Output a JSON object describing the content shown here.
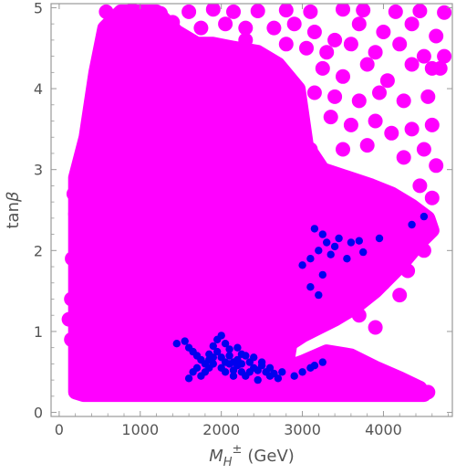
{
  "chart_data": {
    "type": "scatter",
    "xlabel": "M_H^± (GeV)",
    "xlabel_parts": {
      "main": "M",
      "sub": "H",
      "sup": "±",
      "unit": "(GeV)"
    },
    "ylabel": "tanβ",
    "ylabel_parts": {
      "main": "tan",
      "greek": "β"
    },
    "xlim": [
      -100,
      4850
    ],
    "ylim": [
      -0.05,
      5.05
    ],
    "x_ticks": [
      0,
      1000,
      2000,
      3000,
      4000
    ],
    "x_tick_labels": [
      "0",
      "1000",
      "2000",
      "3000",
      "4000"
    ],
    "y_ticks": [
      0,
      1,
      2,
      3,
      4,
      5
    ],
    "y_tick_labels": [
      "0",
      "1",
      "2",
      "3",
      "4",
      "5"
    ],
    "grid": false,
    "colors": {
      "magenta": "#ff00ff",
      "blue": "#0000ee",
      "axis": "#999999"
    },
    "region": {
      "name": "magenta-region",
      "color": "#ff00ff",
      "boundary": [
        [
          200,
          0.25
        ],
        [
          200,
          2.9
        ],
        [
          330,
          3.4
        ],
        [
          450,
          4.2
        ],
        [
          560,
          4.75
        ],
        [
          760,
          4.95
        ],
        [
          1200,
          4.95
        ],
        [
          1450,
          4.7
        ],
        [
          1700,
          4.55
        ],
        [
          1900,
          4.55
        ],
        [
          2150,
          4.5
        ],
        [
          2450,
          4.45
        ],
        [
          2700,
          4.3
        ],
        [
          2950,
          4.0
        ],
        [
          3050,
          3.3
        ],
        [
          3250,
          3.0
        ],
        [
          3550,
          2.9
        ],
        [
          3850,
          2.8
        ],
        [
          4100,
          2.7
        ],
        [
          4350,
          2.55
        ],
        [
          4550,
          2.4
        ],
        [
          4600,
          2.25
        ],
        [
          4450,
          2.1
        ],
        [
          4200,
          1.8
        ],
        [
          3900,
          1.5
        ],
        [
          3650,
          1.3
        ],
        [
          3400,
          1.15
        ],
        [
          3200,
          1.05
        ],
        [
          3000,
          0.95
        ],
        [
          2850,
          0.85
        ],
        [
          2800,
          0.55
        ],
        [
          3000,
          0.62
        ],
        [
          3300,
          0.75
        ],
        [
          3600,
          0.7
        ],
        [
          3900,
          0.55
        ],
        [
          4200,
          0.42
        ],
        [
          4450,
          0.3
        ],
        [
          4500,
          0.22
        ],
        [
          4000,
          0.22
        ],
        [
          3000,
          0.22
        ],
        [
          2000,
          0.22
        ],
        [
          1000,
          0.22
        ],
        [
          300,
          0.22
        ]
      ]
    },
    "series": [
      {
        "name": "",
        "color": "#ff00ff",
        "points": [
          [
            580,
            4.95
          ],
          [
            900,
            4.97
          ],
          [
            1250,
            4.93
          ],
          [
            1600,
            4.95
          ],
          [
            1900,
            4.98
          ],
          [
            2150,
            4.95
          ],
          [
            2450,
            4.96
          ],
          [
            2800,
            4.97
          ],
          [
            3100,
            4.95
          ],
          [
            3500,
            4.98
          ],
          [
            3750,
            4.97
          ],
          [
            4150,
            4.95
          ],
          [
            4450,
            4.96
          ],
          [
            4750,
            4.94
          ],
          [
            650,
            4.8
          ],
          [
            1000,
            4.78
          ],
          [
            1400,
            4.82
          ],
          [
            1750,
            4.75
          ],
          [
            2050,
            4.8
          ],
          [
            2300,
            4.75
          ],
          [
            2650,
            4.75
          ],
          [
            2900,
            4.8
          ],
          [
            3150,
            4.7
          ],
          [
            3400,
            4.6
          ],
          [
            3700,
            4.8
          ],
          [
            4000,
            4.7
          ],
          [
            4350,
            4.8
          ],
          [
            4650,
            4.65
          ],
          [
            2300,
            4.6
          ],
          [
            2800,
            4.55
          ],
          [
            3050,
            4.5
          ],
          [
            3300,
            4.45
          ],
          [
            3600,
            4.55
          ],
          [
            3900,
            4.45
          ],
          [
            4200,
            4.55
          ],
          [
            4500,
            4.4
          ],
          [
            4750,
            4.4
          ],
          [
            3250,
            4.25
          ],
          [
            3500,
            4.15
          ],
          [
            3800,
            4.3
          ],
          [
            4050,
            4.1
          ],
          [
            4350,
            4.3
          ],
          [
            4600,
            4.25
          ],
          [
            4700,
            4.25
          ],
          [
            3150,
            3.95
          ],
          [
            3400,
            3.9
          ],
          [
            3700,
            3.85
          ],
          [
            3950,
            3.95
          ],
          [
            4250,
            3.85
          ],
          [
            4550,
            3.9
          ],
          [
            4600,
            3.55
          ],
          [
            3350,
            3.65
          ],
          [
            3600,
            3.55
          ],
          [
            3900,
            3.6
          ],
          [
            4100,
            3.45
          ],
          [
            4350,
            3.5
          ],
          [
            3100,
            3.25
          ],
          [
            3500,
            3.25
          ],
          [
            3800,
            3.3
          ],
          [
            4250,
            3.15
          ],
          [
            4500,
            3.25
          ],
          [
            4650,
            3.05
          ],
          [
            4450,
            2.8
          ],
          [
            4600,
            2.65
          ],
          [
            3000,
            0.5
          ],
          [
            3250,
            0.55
          ],
          [
            3500,
            0.45
          ],
          [
            3700,
            0.55
          ],
          [
            4000,
            0.4
          ],
          [
            4200,
            0.35
          ],
          [
            4450,
            0.3
          ],
          [
            4550,
            0.25
          ],
          [
            150,
            1.4
          ],
          [
            120,
            1.15
          ],
          [
            150,
            0.9
          ],
          [
            200,
            2.45
          ],
          [
            180,
            2.7
          ],
          [
            160,
            1.9
          ],
          [
            380,
            3.7
          ],
          [
            320,
            3.05
          ],
          [
            1050,
            0.25
          ],
          [
            3500,
            1.25
          ],
          [
            3700,
            1.2
          ],
          [
            3900,
            1.05
          ],
          [
            4200,
            1.45
          ],
          [
            4000,
            1.6
          ],
          [
            4300,
            1.75
          ],
          [
            4500,
            2.0
          ]
        ]
      },
      {
        "name": "",
        "color": "#0000ee",
        "points": [
          [
            1450,
            0.85
          ],
          [
            1550,
            0.88
          ],
          [
            1600,
            0.8
          ],
          [
            1650,
            0.75
          ],
          [
            1700,
            0.7
          ],
          [
            1750,
            0.65
          ],
          [
            1800,
            0.6
          ],
          [
            1850,
            0.72
          ],
          [
            1900,
            0.68
          ],
          [
            1950,
            0.9
          ],
          [
            2000,
            0.95
          ],
          [
            2050,
            0.85
          ],
          [
            1950,
            0.75
          ],
          [
            1900,
            0.6
          ],
          [
            1850,
            0.55
          ],
          [
            2100,
            0.7
          ],
          [
            2150,
            0.62
          ],
          [
            2200,
            0.65
          ],
          [
            2250,
            0.6
          ],
          [
            2300,
            0.7
          ],
          [
            2350,
            0.62
          ],
          [
            2400,
            0.55
          ],
          [
            2450,
            0.52
          ],
          [
            2500,
            0.58
          ],
          [
            2550,
            0.5
          ],
          [
            2600,
            0.45
          ],
          [
            2650,
            0.48
          ],
          [
            2700,
            0.42
          ],
          [
            2750,
            0.5
          ],
          [
            2000,
            0.55
          ],
          [
            2050,
            0.5
          ],
          [
            2100,
            0.6
          ],
          [
            2150,
            0.52
          ],
          [
            2200,
            0.58
          ],
          [
            2250,
            0.5
          ],
          [
            2300,
            0.45
          ],
          [
            2350,
            0.5
          ],
          [
            1700,
            0.55
          ],
          [
            1650,
            0.5
          ],
          [
            1600,
            0.42
          ],
          [
            1750,
            0.45
          ],
          [
            1800,
            0.5
          ],
          [
            2050,
            0.62
          ],
          [
            2000,
            0.68
          ],
          [
            2100,
            0.78
          ],
          [
            2200,
            0.8
          ],
          [
            1900,
            0.82
          ],
          [
            1850,
            0.65
          ],
          [
            2250,
            0.72
          ],
          [
            2400,
            0.68
          ],
          [
            2500,
            0.62
          ],
          [
            2150,
            0.45
          ],
          [
            2450,
            0.4
          ],
          [
            2600,
            0.55
          ],
          [
            2900,
            0.45
          ],
          [
            3000,
            0.5
          ],
          [
            3100,
            0.55
          ],
          [
            3250,
            0.62
          ],
          [
            3150,
            0.58
          ],
          [
            3150,
            2.27
          ],
          [
            3250,
            2.2
          ],
          [
            3300,
            2.1
          ],
          [
            3400,
            2.05
          ],
          [
            3200,
            2.0
          ],
          [
            3100,
            1.9
          ],
          [
            3000,
            1.82
          ],
          [
            3350,
            1.95
          ],
          [
            3450,
            2.15
          ],
          [
            3250,
            1.7
          ],
          [
            3100,
            1.55
          ],
          [
            3200,
            1.45
          ],
          [
            3600,
            2.1
          ],
          [
            3700,
            2.12
          ],
          [
            3750,
            1.98
          ],
          [
            3550,
            1.9
          ],
          [
            3950,
            2.15
          ],
          [
            4350,
            2.32
          ],
          [
            4500,
            2.42
          ]
        ]
      }
    ]
  }
}
